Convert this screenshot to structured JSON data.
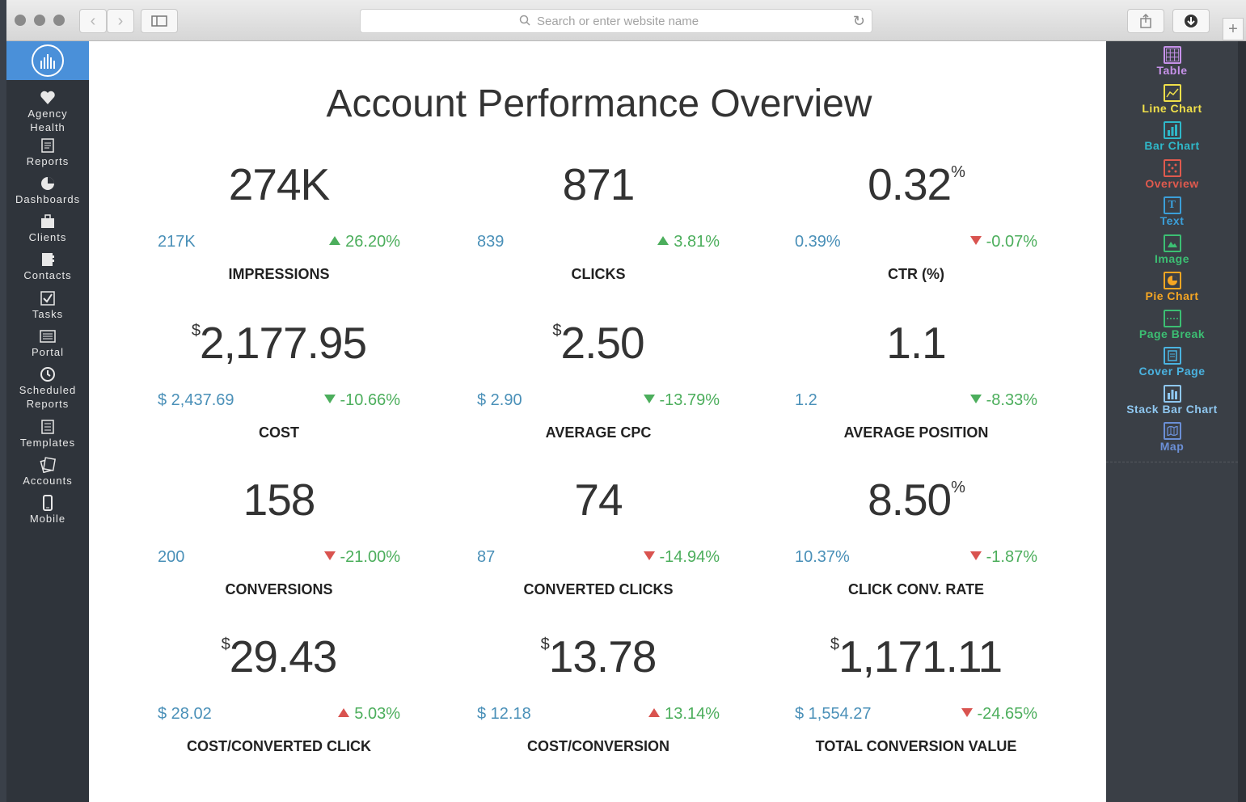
{
  "browser": {
    "address_placeholder": "Search or enter website name",
    "back_icon": "chevron-left-icon",
    "forward_icon": "chevron-right-icon"
  },
  "sidebar": {
    "items": [
      {
        "label": "Agency Health",
        "icon": "heart-icon"
      },
      {
        "label": "Reports",
        "icon": "report-icon"
      },
      {
        "label": "Dashboards",
        "icon": "pie-icon"
      },
      {
        "label": "Clients",
        "icon": "briefcase-icon"
      },
      {
        "label": "Contacts",
        "icon": "contacts-icon"
      },
      {
        "label": "Tasks",
        "icon": "checkbox-icon"
      },
      {
        "label": "Portal",
        "icon": "portal-icon"
      },
      {
        "label": "Scheduled Reports",
        "icon": "clock-icon"
      },
      {
        "label": "Templates",
        "icon": "template-icon"
      },
      {
        "label": "Accounts",
        "icon": "accounts-icon"
      },
      {
        "label": "Mobile",
        "icon": "mobile-icon"
      }
    ]
  },
  "page": {
    "title": "Account Performance Overview"
  },
  "metrics": [
    {
      "value": "274K",
      "prefix": "",
      "suffix": "",
      "previous": "217K",
      "change": "26.20%",
      "direction": "up",
      "good": true,
      "label": "IMPRESSIONS"
    },
    {
      "value": "871",
      "prefix": "",
      "suffix": "",
      "previous": "839",
      "change": "3.81%",
      "direction": "up",
      "good": true,
      "label": "CLICKS"
    },
    {
      "value": "0.32",
      "prefix": "",
      "suffix": "%",
      "previous": "0.39%",
      "change": "-0.07%",
      "direction": "down",
      "good": false,
      "label": "CTR (%)"
    },
    {
      "value": "2,177.95",
      "prefix": "$",
      "suffix": "",
      "previous": "$ 2,437.69",
      "change": "-10.66%",
      "direction": "down",
      "good": true,
      "label": "COST"
    },
    {
      "value": "2.50",
      "prefix": "$",
      "suffix": "",
      "previous": "$ 2.90",
      "change": "-13.79%",
      "direction": "down",
      "good": true,
      "label": "AVERAGE CPC"
    },
    {
      "value": "1.1",
      "prefix": "",
      "suffix": "",
      "previous": "1.2",
      "change": "-8.33%",
      "direction": "down",
      "good": true,
      "label": "AVERAGE POSITION"
    },
    {
      "value": "158",
      "prefix": "",
      "suffix": "",
      "previous": "200",
      "change": "-21.00%",
      "direction": "down",
      "good": false,
      "label": "CONVERSIONS"
    },
    {
      "value": "74",
      "prefix": "",
      "suffix": "",
      "previous": "87",
      "change": "-14.94%",
      "direction": "down",
      "good": false,
      "label": "CONVERTED CLICKS"
    },
    {
      "value": "8.50",
      "prefix": "",
      "suffix": "%",
      "previous": "10.37%",
      "change": "-1.87%",
      "direction": "down",
      "good": false,
      "label": "CLICK CONV. RATE"
    },
    {
      "value": "29.43",
      "prefix": "$",
      "suffix": "",
      "previous": "$ 28.02",
      "change": "5.03%",
      "direction": "up",
      "good": false,
      "label": "COST/CONVERTED CLICK"
    },
    {
      "value": "13.78",
      "prefix": "$",
      "suffix": "",
      "previous": "$ 12.18",
      "change": "13.14%",
      "direction": "up",
      "good": false,
      "label": "COST/CONVERSION"
    },
    {
      "value": "1,171.11",
      "prefix": "$",
      "suffix": "",
      "previous": "$ 1,554.27",
      "change": "-24.65%",
      "direction": "down",
      "good": false,
      "label": "TOTAL CONVERSION VALUE"
    }
  ],
  "tools": [
    {
      "label": "Table",
      "color": "#c792ea",
      "icon": "table-icon"
    },
    {
      "label": "Line Chart",
      "color": "#f0e04a",
      "icon": "line-chart-icon"
    },
    {
      "label": "Bar Chart",
      "color": "#2fb8c9",
      "icon": "bar-chart-icon"
    },
    {
      "label": "Overview",
      "color": "#e05a4e",
      "icon": "overview-icon"
    },
    {
      "label": "Text",
      "color": "#3b9fd9",
      "icon": "text-icon"
    },
    {
      "label": "Image",
      "color": "#3cbf73",
      "icon": "image-icon"
    },
    {
      "label": "Pie Chart",
      "color": "#f5a623",
      "icon": "pie-chart-icon"
    },
    {
      "label": "Page Break",
      "color": "#3cbf73",
      "icon": "page-break-icon"
    },
    {
      "label": "Cover Page",
      "color": "#4ab3e0",
      "icon": "cover-page-icon"
    },
    {
      "label": "Stack Bar Chart",
      "color": "#8fc7f0",
      "icon": "stack-bar-chart-icon"
    },
    {
      "label": "Map",
      "color": "#6b8fd6",
      "icon": "map-icon"
    }
  ],
  "colors": {
    "positive": "#4cae5c",
    "negative": "#d9534f",
    "previous": "#4a90b8",
    "brand": "#4a90d9"
  }
}
